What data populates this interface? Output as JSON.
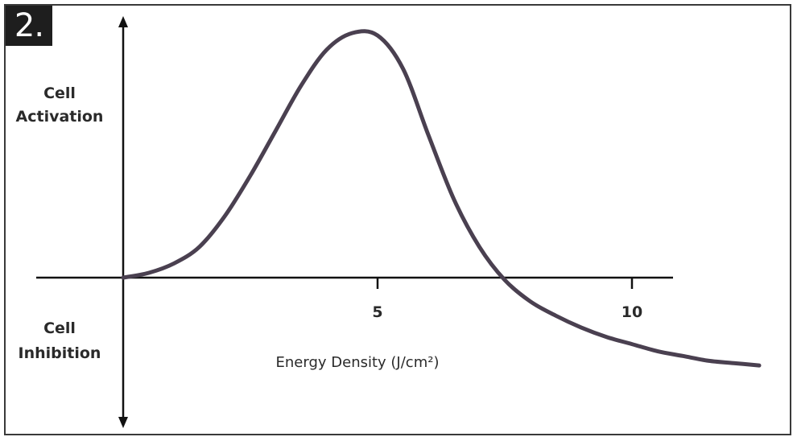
{
  "figure": {
    "badge": "2."
  },
  "chart_data": {
    "type": "line",
    "title": "",
    "xlabel": "Energy Density (J/cm²)",
    "ylabel_top": [
      "Cell",
      "Activation"
    ],
    "ylabel_bottom": [
      "Cell",
      "Inhibition"
    ],
    "x_ticks": [
      5,
      10
    ],
    "xlim": [
      0,
      12.8
    ],
    "ylim": [
      -4,
      11.5
    ],
    "grid": false,
    "series": [
      {
        "color": "#4a4050",
        "x": [
          0,
          0.5,
          1,
          1.5,
          2,
          2.5,
          3,
          3.5,
          4,
          4.5,
          5,
          5.5,
          6,
          6.5,
          7,
          7.5,
          8,
          8.5,
          9,
          9.5,
          10,
          10.5,
          11,
          11.5,
          12,
          12.5
        ],
        "y": [
          0,
          0.2,
          0.6,
          1.3,
          2.6,
          4.3,
          6.2,
          8.1,
          9.6,
          10.3,
          10.2,
          8.8,
          6.0,
          3.3,
          1.3,
          -0.1,
          -1.0,
          -1.6,
          -2.1,
          -2.5,
          -2.8,
          -3.1,
          -3.3,
          -3.5,
          -3.6,
          -3.7
        ]
      }
    ]
  }
}
